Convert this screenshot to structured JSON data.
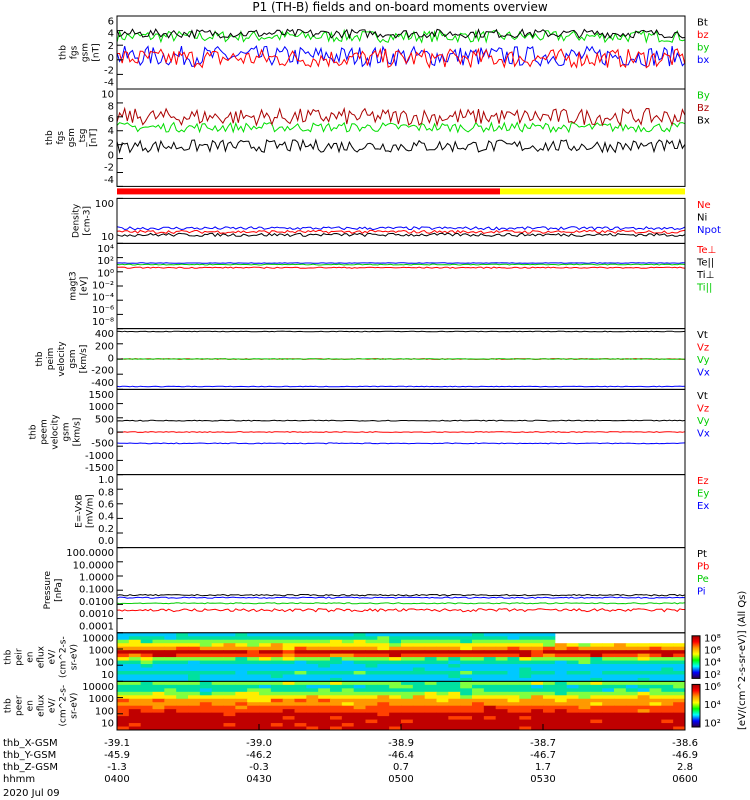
{
  "chart_data": {
    "type": "line",
    "title": "P1  (TH-B) fields and on-board moments overview",
    "date": "2020 Jul 09",
    "x_ticks": [
      "0400",
      "0430",
      "0500",
      "0530",
      "0600"
    ],
    "xlim_hhmm": [
      "0400",
      "0600"
    ],
    "ephemeris": [
      {
        "label": "thb_X-GSM",
        "values": [
          "-39.1",
          "-39.0",
          "-38.9",
          "-38.7",
          "-38.6"
        ]
      },
      {
        "label": "thb_Y-GSM",
        "values": [
          "-45.9",
          "-46.2",
          "-46.4",
          "-46.7",
          "-46.9"
        ]
      },
      {
        "label": "thb_Z-GSM",
        "values": [
          "-1.3",
          "-0.3",
          "0.7",
          "1.7",
          "2.8"
        ]
      },
      {
        "label": "hhmm",
        "values": [
          "0400",
          "0430",
          "0500",
          "0530",
          "0600"
        ]
      }
    ],
    "panels": [
      {
        "ylabel": [
          "thb",
          "fgs",
          "gsm",
          "[nT]"
        ],
        "ticks": [
          "6",
          "4",
          "2",
          "0",
          "-2",
          "-4"
        ],
        "ylim": [
          -4,
          6
        ],
        "legend": [
          {
            "t": "Bt",
            "c": "#000000"
          },
          {
            "t": "bz",
            "c": "#ff0000"
          },
          {
            "t": "by",
            "c": "#00cc00"
          },
          {
            "t": "bx",
            "c": "#0000ff"
          }
        ],
        "series": [
          {
            "c": "#00dd00",
            "mean": 3.2,
            "amp": 0.8
          },
          {
            "c": "#0000ff",
            "mean": 0.5,
            "amp": 1.4
          },
          {
            "c": "#ff0000",
            "mean": 0.2,
            "amp": 1.3
          },
          {
            "c": "#000000",
            "mean": 3.6,
            "amp": 0.6
          }
        ]
      },
      {
        "ylabel": [
          "thb",
          "fgs",
          "gsm",
          "_tsg",
          "[nT]"
        ],
        "ticks": [
          "10",
          "8",
          "6",
          "4",
          "2",
          "0",
          "-2",
          "-4"
        ],
        "ylim": [
          -4,
          10
        ],
        "legend": [
          {
            "t": "By",
            "c": "#00cc00"
          },
          {
            "t": "Bz",
            "c": "#aa0000"
          },
          {
            "t": "Bx",
            "c": "#000000"
          }
        ],
        "series": [
          {
            "c": "#00dd00",
            "mean": 4.5,
            "amp": 0.7
          },
          {
            "c": "#aa0000",
            "mean": 6,
            "amp": 1.2
          },
          {
            "c": "#000000",
            "mean": 1.8,
            "amp": 0.9
          }
        ]
      },
      {
        "ylabel": [
          "Density",
          "[cm-3]"
        ],
        "ticks": [
          "100",
          "10"
        ],
        "log": true,
        "ylim": [
          4,
          200
        ],
        "legend": [
          {
            "t": "Ne",
            "c": "#ff0000"
          },
          {
            "t": "Ni",
            "c": "#000000"
          },
          {
            "t": "Npot",
            "c": "#0000ff"
          }
        ],
        "series": [
          {
            "c": "#0000ff",
            "mean": 15,
            "amp": 2
          },
          {
            "c": "#ff0000",
            "mean": 11,
            "amp": 1.5
          },
          {
            "c": "#000000",
            "mean": 8.5,
            "amp": 1.2
          }
        ]
      },
      {
        "ylabel": [
          "magt3",
          "[eV]"
        ],
        "ticks": [
          "10⁴",
          "10²",
          "10⁰",
          "10⁻²",
          "10⁻⁴",
          "10⁻⁶",
          "10⁻⁸"
        ],
        "log": true,
        "ylim": [
          1e-08,
          100000.0
        ],
        "legend": [
          {
            "t": "Te⊥",
            "c": "#ff0000"
          },
          {
            "t": "Te||",
            "c": "#000000"
          },
          {
            "t": "Ti⊥",
            "c": "#000000"
          },
          {
            "t": "Ti||",
            "c": "#00cc00"
          }
        ],
        "series": [
          {
            "c": "#0000ff",
            "mean": 100,
            "amp": 10
          },
          {
            "c": "#00cc00",
            "mean": 60,
            "amp": 10
          },
          {
            "c": "#ff0000",
            "mean": 20,
            "amp": 4
          }
        ]
      },
      {
        "ylabel": [
          "thb",
          "peim",
          "velocity",
          "gsm",
          "[km/s]"
        ],
        "ticks": [
          "400",
          "200",
          "0",
          "-200",
          "-400"
        ],
        "ylim": [
          -420,
          420
        ],
        "legend": [
          {
            "t": "Vt",
            "c": "#000000"
          },
          {
            "t": "Vz",
            "c": "#ff0000"
          },
          {
            "t": "Vy",
            "c": "#00cc00"
          },
          {
            "t": "Vx",
            "c": "#0000ff"
          }
        ],
        "series": [
          {
            "c": "#000000",
            "mean": 380,
            "amp": 5
          },
          {
            "c": "#ff0000",
            "mean": 0,
            "amp": 6
          },
          {
            "c": "#00cc00",
            "mean": 0,
            "amp": 4
          },
          {
            "c": "#0000ff",
            "mean": -380,
            "amp": 5
          }
        ]
      },
      {
        "ylabel": [
          "thb",
          "peem",
          "velocity",
          "gsm",
          "[km/s]"
        ],
        "ticks": [
          "1500",
          "1000",
          "500",
          "0",
          "-500",
          "-1000",
          "-1500"
        ],
        "ylim": [
          -1500,
          1500
        ],
        "legend": [
          {
            "t": "Vt",
            "c": "#000000"
          },
          {
            "t": "Vz",
            "c": "#ff0000"
          },
          {
            "t": "Vy",
            "c": "#00cc00"
          },
          {
            "t": "Vx",
            "c": "#0000ff"
          }
        ],
        "series": [
          {
            "c": "#000000",
            "mean": 400,
            "amp": 15
          },
          {
            "c": "#ff0000",
            "mean": 0,
            "amp": 15
          },
          {
            "c": "#0000ff",
            "mean": -400,
            "amp": 15
          }
        ]
      },
      {
        "ylabel": [
          "E=-VxB",
          "[mV/m]"
        ],
        "ticks": [
          "1.0",
          "0.8",
          "0.6",
          "0.4",
          "0.2",
          "0.0"
        ],
        "ylim": [
          0,
          1
        ],
        "legend": [
          {
            "t": "Ez",
            "c": "#ff0000"
          },
          {
            "t": "Ey",
            "c": "#00cc00"
          },
          {
            "t": "Ex",
            "c": "#0000ff"
          }
        ],
        "series": []
      },
      {
        "ylabel": [
          "Pressure",
          "[nPa]"
        ],
        "ticks": [
          "100.0000",
          "10.0000",
          "1.0000",
          "0.1000",
          "0.0100",
          "0.0010",
          "0.0001"
        ],
        "log": true,
        "ylim": [
          0.0001,
          100
        ],
        "legend": [
          {
            "t": "Pt",
            "c": "#000000"
          },
          {
            "t": "Pb",
            "c": "#ff0000"
          },
          {
            "t": "Pe",
            "c": "#00cc00"
          },
          {
            "t": "Pi",
            "c": "#0000ff"
          }
        ],
        "series": [
          {
            "c": "#000000",
            "mean": 0.045,
            "amp": 0.005
          },
          {
            "c": "#0000ff",
            "mean": 0.03,
            "amp": 0.003
          },
          {
            "c": "#00cc00",
            "mean": 0.012,
            "amp": 0.001
          },
          {
            "c": "#ff0000",
            "mean": 0.004,
            "amp": 0.001
          }
        ]
      },
      {
        "ylabel": [
          "thb",
          "peir",
          "en",
          "eflux",
          "eV/",
          "(cm^2-s-",
          "sr-eV)"
        ],
        "ticks": [
          "10000",
          "1000",
          "100",
          "10"
        ],
        "spectrogram": true,
        "colorbar": [
          "10⁸",
          "10⁶",
          "10⁴",
          "10²"
        ],
        "legend": []
      },
      {
        "ylabel": [
          "thb",
          "peer",
          "en",
          "eflux",
          "eV/",
          "(cm^2-s-",
          "sr-eV)"
        ],
        "ticks": [
          "10000",
          "1000",
          "100",
          "10"
        ],
        "spectrogram": true,
        "colorbar": [
          "10⁶",
          "10⁴",
          "10²"
        ],
        "legend": []
      }
    ],
    "colorbar_label": "[eV/(cm^2-s-sr-eV)]  (All Qs)"
  }
}
